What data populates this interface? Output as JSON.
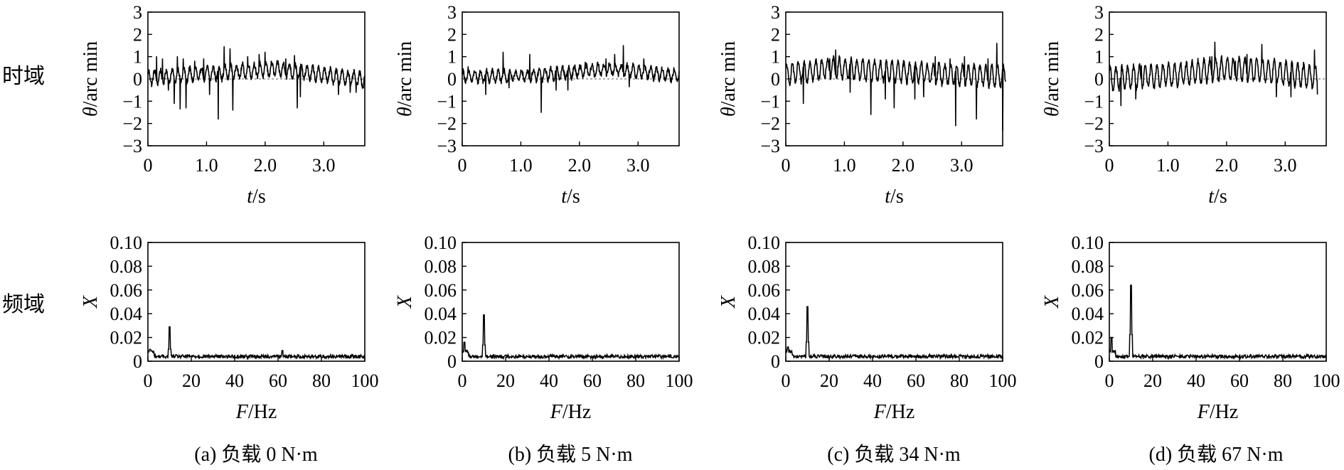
{
  "row_labels": {
    "time": "时域",
    "freq": "频域"
  },
  "panels": [
    {
      "caption": "(a) 负载 0 N·m"
    },
    {
      "caption": "(b) 负载 5 N·m"
    },
    {
      "caption": "(c) 负载 34 N·m"
    },
    {
      "caption": "(d) 负载 67 N·m"
    }
  ],
  "chart_data": [
    {
      "type": "line",
      "panel": "a",
      "domain": "time",
      "xlabel_var": "t",
      "xlabel_unit": "/s",
      "ylabel_var": "θ",
      "ylabel_unit": "/arc min",
      "xlim": [
        0,
        3.7
      ],
      "ylim": [
        -3,
        3
      ],
      "xticks": [
        0,
        1.0,
        2.0,
        3.0
      ],
      "xtick_labels": [
        "0",
        "1.0",
        "2.0",
        "3.0"
      ],
      "yticks": [
        3,
        2,
        1,
        0,
        -1,
        -2,
        -3
      ],
      "ytick_labels": [
        "3",
        "2",
        "1",
        "0",
        "−1",
        "−2",
        "−3"
      ],
      "reference_line": 0,
      "duration": 3.7,
      "base_amplitude": 0.3,
      "trend": [
        [
          0,
          0.05
        ],
        [
          1.6,
          0.35
        ],
        [
          2.2,
          0.45
        ],
        [
          3.7,
          -0.05
        ]
      ],
      "spikes": [
        [
          0.15,
          1.0
        ],
        [
          0.25,
          0.9
        ],
        [
          0.35,
          -0.5
        ],
        [
          0.45,
          -1.1
        ],
        [
          0.5,
          1.0
        ],
        [
          0.55,
          -1.35
        ],
        [
          0.6,
          0.9
        ],
        [
          0.65,
          -1.3
        ],
        [
          0.8,
          0.8
        ],
        [
          0.95,
          0.9
        ],
        [
          1.05,
          -0.7
        ],
        [
          1.2,
          1.0
        ],
        [
          1.2,
          -1.8
        ],
        [
          1.3,
          1.45
        ],
        [
          1.4,
          1.35
        ],
        [
          1.45,
          -1.4
        ],
        [
          1.7,
          1.0
        ],
        [
          1.9,
          1.1
        ],
        [
          2.0,
          1.2
        ],
        [
          2.35,
          0.9
        ],
        [
          2.5,
          1.05
        ],
        [
          2.55,
          -1.3
        ],
        [
          2.6,
          -0.8
        ],
        [
          3.25,
          -0.7
        ],
        [
          3.45,
          -0.6
        ],
        [
          3.55,
          -0.6
        ]
      ]
    },
    {
      "type": "line",
      "panel": "b",
      "domain": "time",
      "xlabel_var": "t",
      "xlabel_unit": "/s",
      "ylabel_var": "θ",
      "ylabel_unit": "/arc min",
      "xlim": [
        0,
        3.7
      ],
      "ylim": [
        -3,
        3
      ],
      "xticks": [
        0,
        1.0,
        2.0,
        3.0
      ],
      "xtick_labels": [
        "0",
        "1.0",
        "2.0",
        "3.0"
      ],
      "yticks": [
        3,
        2,
        1,
        0,
        -1,
        -2,
        -3
      ],
      "ytick_labels": [
        "3",
        "2",
        "1",
        "0",
        "−1",
        "−2",
        "−3"
      ],
      "reference_line": 0,
      "duration": 3.7,
      "base_amplitude": 0.25,
      "trend": [
        [
          0,
          0.1
        ],
        [
          1.2,
          0.15
        ],
        [
          2.5,
          0.45
        ],
        [
          3.7,
          0.15
        ]
      ],
      "spikes": [
        [
          0.1,
          0.55
        ],
        [
          0.4,
          -0.7
        ],
        [
          0.7,
          1.2
        ],
        [
          0.8,
          -0.4
        ],
        [
          1.15,
          1.1
        ],
        [
          1.35,
          -1.5
        ],
        [
          1.6,
          -0.5
        ],
        [
          1.8,
          -0.5
        ],
        [
          2.1,
          0.75
        ],
        [
          2.45,
          0.9
        ],
        [
          2.6,
          1.1
        ],
        [
          2.75,
          1.5
        ],
        [
          2.85,
          -0.35
        ],
        [
          3.1,
          0.9
        ]
      ]
    },
    {
      "type": "line",
      "panel": "c",
      "domain": "time",
      "xlabel_var": "t",
      "xlabel_unit": "/s",
      "ylabel_var": "θ",
      "ylabel_unit": "/arc min",
      "xlim": [
        0,
        3.7
      ],
      "ylim": [
        -3,
        3
      ],
      "xticks": [
        0,
        1.0,
        2.0,
        3.0
      ],
      "xtick_labels": [
        "0",
        "1.0",
        "2.0",
        "3.0"
      ],
      "yticks": [
        3,
        2,
        1,
        0,
        -1,
        -2,
        -3
      ],
      "ytick_labels": [
        "3",
        "2",
        "1",
        "0",
        "−1",
        "−2",
        "−3"
      ],
      "reference_line": 0,
      "duration": 3.75,
      "base_amplitude": 0.45,
      "trend": [
        [
          0,
          0.2
        ],
        [
          0.8,
          0.5
        ],
        [
          1.6,
          0.35
        ],
        [
          3.75,
          0.1
        ]
      ],
      "spikes": [
        [
          0.3,
          -1.1
        ],
        [
          0.75,
          0.9
        ],
        [
          0.85,
          1.3
        ],
        [
          1.1,
          -0.6
        ],
        [
          1.45,
          -1.6
        ],
        [
          1.7,
          -0.9
        ],
        [
          1.85,
          -1.3
        ],
        [
          2.2,
          -0.9
        ],
        [
          2.35,
          -0.8
        ],
        [
          2.55,
          1.0
        ],
        [
          2.8,
          0.9
        ],
        [
          2.9,
          -2.1
        ],
        [
          3.05,
          1.0
        ],
        [
          3.25,
          -1.8
        ],
        [
          3.45,
          0.9
        ],
        [
          3.6,
          1.6
        ],
        [
          3.7,
          -2.3
        ]
      ]
    },
    {
      "type": "line",
      "panel": "d",
      "domain": "time",
      "xlabel_var": "t",
      "xlabel_unit": "/s",
      "ylabel_var": "θ",
      "ylabel_unit": "/arc min",
      "xlim": [
        0,
        3.7
      ],
      "ylim": [
        -3,
        3
      ],
      "xticks": [
        0,
        1.0,
        2.0,
        3.0
      ],
      "xtick_labels": [
        "0",
        "1.0",
        "2.0",
        "3.0"
      ],
      "yticks": [
        3,
        2,
        1,
        0,
        -1,
        -2,
        -3
      ],
      "ytick_labels": [
        "3",
        "2",
        "1",
        "0",
        "−1",
        "−2",
        "−3"
      ],
      "reference_line": 0,
      "duration": 3.55,
      "base_amplitude": 0.5,
      "trend": [
        [
          0,
          0.0
        ],
        [
          1.2,
          0.2
        ],
        [
          1.9,
          0.45
        ],
        [
          2.6,
          0.4
        ],
        [
          3.55,
          0.05
        ]
      ],
      "spikes": [
        [
          0.2,
          -1.2
        ],
        [
          0.45,
          -0.9
        ],
        [
          0.55,
          0.6
        ],
        [
          1.0,
          0.6
        ],
        [
          1.75,
          1.0
        ],
        [
          1.8,
          1.65
        ],
        [
          2.15,
          0.8
        ],
        [
          2.35,
          1.1
        ],
        [
          2.6,
          1.55
        ],
        [
          2.85,
          -0.8
        ],
        [
          3.1,
          -0.8
        ],
        [
          3.5,
          1.3
        ],
        [
          3.55,
          -0.7
        ]
      ]
    },
    {
      "type": "line",
      "panel": "a",
      "domain": "frequency",
      "xlabel_var": "F",
      "xlabel_unit": "/Hz",
      "ylabel_var": "X",
      "xlim": [
        0,
        100
      ],
      "ylim": [
        0,
        0.1
      ],
      "xticks": [
        0,
        20,
        40,
        60,
        80,
        100
      ],
      "xtick_labels": [
        "0",
        "20",
        "40",
        "60",
        "80",
        "100"
      ],
      "yticks": [
        0.1,
        0.08,
        0.06,
        0.04,
        0.02,
        0
      ],
      "ytick_labels": [
        "0.10",
        "0.08",
        "0.06",
        "0.04",
        "0.02",
        "0"
      ],
      "noise_floor": 0.004,
      "peaks": [
        [
          1,
          0.01
        ],
        [
          10,
          0.029
        ],
        [
          62,
          0.009
        ]
      ]
    },
    {
      "type": "line",
      "panel": "b",
      "domain": "frequency",
      "xlabel_var": "F",
      "xlabel_unit": "/Hz",
      "ylabel_var": "X",
      "xlim": [
        0,
        100
      ],
      "ylim": [
        0,
        0.1
      ],
      "xticks": [
        0,
        20,
        40,
        60,
        80,
        100
      ],
      "xtick_labels": [
        "0",
        "20",
        "40",
        "60",
        "80",
        "100"
      ],
      "yticks": [
        0.1,
        0.08,
        0.06,
        0.04,
        0.02,
        0
      ],
      "ytick_labels": [
        "0.10",
        "0.08",
        "0.06",
        "0.04",
        "0.02",
        "0"
      ],
      "noise_floor": 0.004,
      "peaks": [
        [
          1,
          0.016
        ],
        [
          10,
          0.039
        ]
      ]
    },
    {
      "type": "line",
      "panel": "c",
      "domain": "frequency",
      "xlabel_var": "F",
      "xlabel_unit": "/Hz",
      "ylabel_var": "X",
      "xlim": [
        0,
        100
      ],
      "ylim": [
        0,
        0.1
      ],
      "xticks": [
        0,
        20,
        40,
        60,
        80,
        100
      ],
      "xtick_labels": [
        "0",
        "20",
        "40",
        "60",
        "80",
        "100"
      ],
      "yticks": [
        0.1,
        0.08,
        0.06,
        0.04,
        0.02,
        0
      ],
      "ytick_labels": [
        "0.10",
        "0.08",
        "0.06",
        "0.04",
        "0.02",
        "0"
      ],
      "noise_floor": 0.004,
      "peaks": [
        [
          1,
          0.012
        ],
        [
          10,
          0.046
        ]
      ]
    },
    {
      "type": "line",
      "panel": "d",
      "domain": "frequency",
      "xlabel_var": "F",
      "xlabel_unit": "/Hz",
      "ylabel_var": "X",
      "xlim": [
        0,
        100
      ],
      "ylim": [
        0,
        0.1
      ],
      "xticks": [
        0,
        20,
        40,
        60,
        80,
        100
      ],
      "xtick_labels": [
        "0",
        "20",
        "40",
        "60",
        "80",
        "100"
      ],
      "yticks": [
        0.1,
        0.08,
        0.06,
        0.04,
        0.02,
        0
      ],
      "ytick_labels": [
        "0.10",
        "0.08",
        "0.06",
        "0.04",
        "0.02",
        "0"
      ],
      "noise_floor": 0.004,
      "peaks": [
        [
          1,
          0.02
        ],
        [
          10,
          0.064
        ]
      ]
    }
  ]
}
